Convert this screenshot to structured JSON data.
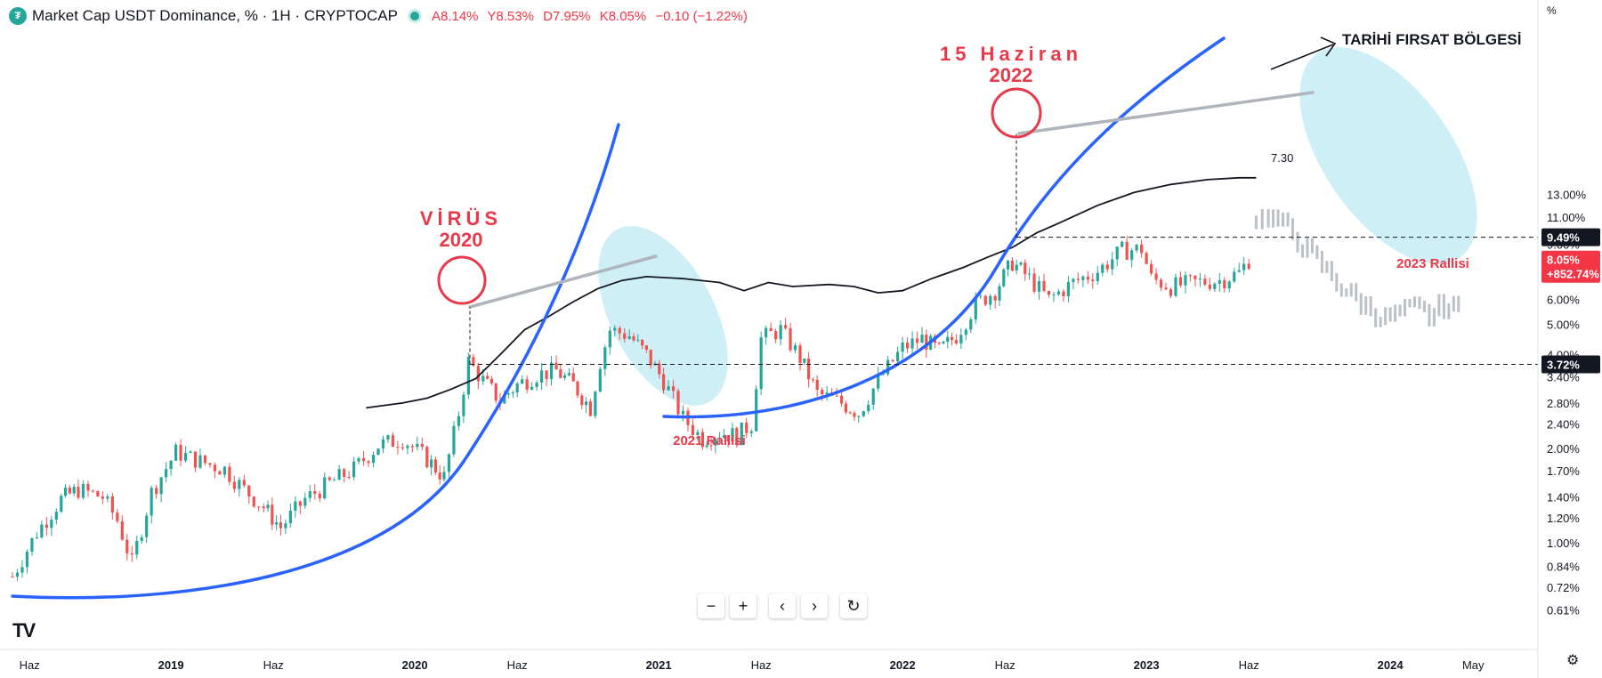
{
  "header": {
    "symbol": "Market Cap USDT Dominance, % · 1H · CRYPTOCAP",
    "open": "A8.14%",
    "high": "Y8.53%",
    "low": "D7.95%",
    "close": "K8.05%",
    "change": "−0.10 (−1.22%)"
  },
  "price_axis": {
    "unit": "%",
    "ticks": [
      {
        "label": "13.00%",
        "value": 13.0
      },
      {
        "label": "11.00%",
        "value": 11.0
      },
      {
        "label": "9.00%",
        "value": 9.0
      },
      {
        "label": "6.00%",
        "value": 6.0
      },
      {
        "label": "5.00%",
        "value": 5.0
      },
      {
        "label": "4.00%",
        "value": 4.0
      },
      {
        "label": "3.40%",
        "value": 3.4
      },
      {
        "label": "2.80%",
        "value": 2.8
      },
      {
        "label": "2.40%",
        "value": 2.4
      },
      {
        "label": "2.00%",
        "value": 2.0
      },
      {
        "label": "1.70%",
        "value": 1.7
      },
      {
        "label": "1.40%",
        "value": 1.4
      },
      {
        "label": "1.20%",
        "value": 1.2
      },
      {
        "label": "1.00%",
        "value": 1.0
      },
      {
        "label": "0.84%",
        "value": 0.84
      },
      {
        "label": "0.72%",
        "value": 0.72
      },
      {
        "label": "0.61%",
        "value": 0.61
      }
    ],
    "marker_949": {
      "label": "9.49%",
      "value": 9.49
    },
    "marker_372": {
      "label": "3.72%",
      "value": 3.72
    },
    "current_price": {
      "label": "8.05%",
      "change": "+852.74%",
      "value": 8.05
    }
  },
  "time_axis": {
    "ticks": [
      {
        "label": "Haz",
        "t": 2018.42
      },
      {
        "label": "2019",
        "t": 2019.0
      },
      {
        "label": "Haz",
        "t": 2019.42
      },
      {
        "label": "2020",
        "t": 2020.0
      },
      {
        "label": "Haz",
        "t": 2020.42
      },
      {
        "label": "2021",
        "t": 2021.0
      },
      {
        "label": "Haz",
        "t": 2021.42
      },
      {
        "label": "2022",
        "t": 2022.0
      },
      {
        "label": "Haz",
        "t": 2022.42
      },
      {
        "label": "2023",
        "t": 2023.0
      },
      {
        "label": "Haz",
        "t": 2023.42
      },
      {
        "label": "2024",
        "t": 2024.0
      },
      {
        "label": "May",
        "t": 2024.34
      }
    ]
  },
  "annotations": {
    "virus_line1": "VİRÜS",
    "virus_line2": "2020",
    "haziran_line1": "15 Haziran",
    "haziran_line2": "2022",
    "rally_2021": "2021 Rallisi",
    "rally_2023": "2023 Rallisi",
    "opportunity": "TARİHİ FIRSAT BÖLGESİ",
    "value_730": "7.30"
  },
  "controls": {
    "zoom_out": "−",
    "zoom_in": "+",
    "scroll_left": "‹",
    "scroll_right": "›",
    "reset": "↻"
  },
  "colors": {
    "up": "#26a69a",
    "down": "#ef5350",
    "curve": "#2962ff",
    "annotation_red": "#e8394a",
    "projection": "#b0b5bd",
    "zone_fill": "#bfeaf3"
  },
  "chart_data": {
    "type": "candlestick",
    "title": "Market Cap USDT Dominance, % · 1H · CRYPTOCAP",
    "y_scale": "log",
    "ylim": [
      0.58,
      14.5
    ],
    "xlim": [
      2018.35,
      2024.62
    ],
    "close_series": [
      {
        "t": 2018.35,
        "v": 0.78
      },
      {
        "t": 2018.45,
        "v": 1.08
      },
      {
        "t": 2018.55,
        "v": 1.38
      },
      {
        "t": 2018.62,
        "v": 1.48
      },
      {
        "t": 2018.72,
        "v": 1.4
      },
      {
        "t": 2018.78,
        "v": 1.18
      },
      {
        "t": 2018.84,
        "v": 0.86
      },
      {
        "t": 2018.92,
        "v": 1.45
      },
      {
        "t": 2019.02,
        "v": 1.95
      },
      {
        "t": 2019.12,
        "v": 1.82
      },
      {
        "t": 2019.22,
        "v": 1.72
      },
      {
        "t": 2019.3,
        "v": 1.48
      },
      {
        "t": 2019.38,
        "v": 1.3
      },
      {
        "t": 2019.45,
        "v": 1.12
      },
      {
        "t": 2019.55,
        "v": 1.38
      },
      {
        "t": 2019.65,
        "v": 1.55
      },
      {
        "t": 2019.75,
        "v": 1.72
      },
      {
        "t": 2019.85,
        "v": 2.05
      },
      {
        "t": 2019.95,
        "v": 2.15
      },
      {
        "t": 2020.05,
        "v": 1.85
      },
      {
        "t": 2020.12,
        "v": 1.62
      },
      {
        "t": 2020.18,
        "v": 2.6
      },
      {
        "t": 2020.22,
        "v": 3.8
      },
      {
        "t": 2020.28,
        "v": 3.3
      },
      {
        "t": 2020.35,
        "v": 2.85
      },
      {
        "t": 2020.42,
        "v": 3.2
      },
      {
        "t": 2020.5,
        "v": 3.45
      },
      {
        "t": 2020.58,
        "v": 3.55
      },
      {
        "t": 2020.65,
        "v": 3.2
      },
      {
        "t": 2020.72,
        "v": 2.7
      },
      {
        "t": 2020.76,
        "v": 3.8
      },
      {
        "t": 2020.8,
        "v": 4.8
      },
      {
        "t": 2020.88,
        "v": 4.6
      },
      {
        "t": 2020.95,
        "v": 4.0
      },
      {
        "t": 2021.02,
        "v": 3.3
      },
      {
        "t": 2021.1,
        "v": 2.5
      },
      {
        "t": 2021.18,
        "v": 2.15
      },
      {
        "t": 2021.25,
        "v": 2.25
      },
      {
        "t": 2021.32,
        "v": 2.2
      },
      {
        "t": 2021.38,
        "v": 2.4
      },
      {
        "t": 2021.42,
        "v": 4.5
      },
      {
        "t": 2021.5,
        "v": 4.8
      },
      {
        "t": 2021.58,
        "v": 3.9
      },
      {
        "t": 2021.65,
        "v": 3.0
      },
      {
        "t": 2021.75,
        "v": 2.8
      },
      {
        "t": 2021.82,
        "v": 2.6
      },
      {
        "t": 2021.9,
        "v": 3.3
      },
      {
        "t": 2022.0,
        "v": 4.2
      },
      {
        "t": 2022.08,
        "v": 4.5
      },
      {
        "t": 2022.15,
        "v": 4.1
      },
      {
        "t": 2022.22,
        "v": 4.6
      },
      {
        "t": 2022.3,
        "v": 5.8
      },
      {
        "t": 2022.38,
        "v": 6.4
      },
      {
        "t": 2022.45,
        "v": 7.9
      },
      {
        "t": 2022.52,
        "v": 7.0
      },
      {
        "t": 2022.6,
        "v": 6.0
      },
      {
        "t": 2022.7,
        "v": 6.8
      },
      {
        "t": 2022.8,
        "v": 7.4
      },
      {
        "t": 2022.9,
        "v": 8.6
      },
      {
        "t": 2022.98,
        "v": 8.7
      },
      {
        "t": 2023.02,
        "v": 7.0
      },
      {
        "t": 2023.1,
        "v": 6.6
      },
      {
        "t": 2023.2,
        "v": 6.8
      },
      {
        "t": 2023.3,
        "v": 6.9
      },
      {
        "t": 2023.38,
        "v": 7.3
      },
      {
        "t": 2023.42,
        "v": 8.05
      }
    ],
    "moving_average": [
      {
        "t": 2019.8,
        "v": 2.7
      },
      {
        "t": 2019.95,
        "v": 2.8
      },
      {
        "t": 2020.05,
        "v": 2.9
      },
      {
        "t": 2020.15,
        "v": 3.1
      },
      {
        "t": 2020.25,
        "v": 3.35
      },
      {
        "t": 2020.35,
        "v": 4.0
      },
      {
        "t": 2020.45,
        "v": 4.8
      },
      {
        "t": 2020.55,
        "v": 5.3
      },
      {
        "t": 2020.65,
        "v": 5.9
      },
      {
        "t": 2020.75,
        "v": 6.5
      },
      {
        "t": 2020.85,
        "v": 6.9
      },
      {
        "t": 2020.95,
        "v": 7.1
      },
      {
        "t": 2021.1,
        "v": 7.0
      },
      {
        "t": 2021.25,
        "v": 6.8
      },
      {
        "t": 2021.35,
        "v": 6.4
      },
      {
        "t": 2021.45,
        "v": 6.8
      },
      {
        "t": 2021.55,
        "v": 6.6
      },
      {
        "t": 2021.7,
        "v": 6.7
      },
      {
        "t": 2021.8,
        "v": 6.6
      },
      {
        "t": 2021.9,
        "v": 6.3
      },
      {
        "t": 2022.0,
        "v": 6.4
      },
      {
        "t": 2022.12,
        "v": 7.0
      },
      {
        "t": 2022.25,
        "v": 7.6
      },
      {
        "t": 2022.35,
        "v": 8.2
      },
      {
        "t": 2022.45,
        "v": 8.8
      },
      {
        "t": 2022.55,
        "v": 9.8
      },
      {
        "t": 2022.65,
        "v": 10.6
      },
      {
        "t": 2022.8,
        "v": 12.0
      },
      {
        "t": 2022.95,
        "v": 13.2
      },
      {
        "t": 2023.1,
        "v": 14.0
      },
      {
        "t": 2023.25,
        "v": 14.5
      },
      {
        "t": 2023.38,
        "v": 14.7
      },
      {
        "t": 2023.45,
        "v": 14.7
      }
    ],
    "projection_series": [
      {
        "t": 2023.45,
        "v": 10.8
      },
      {
        "t": 2023.5,
        "v": 11.2
      },
      {
        "t": 2023.56,
        "v": 10.3
      },
      {
        "t": 2023.62,
        "v": 9.4
      },
      {
        "t": 2023.68,
        "v": 8.2
      },
      {
        "t": 2023.74,
        "v": 7.4
      },
      {
        "t": 2023.8,
        "v": 6.6
      },
      {
        "t": 2023.86,
        "v": 6.0
      },
      {
        "t": 2023.92,
        "v": 5.6
      },
      {
        "t": 2023.98,
        "v": 5.2
      },
      {
        "t": 2024.04,
        "v": 5.4
      },
      {
        "t": 2024.1,
        "v": 5.6
      },
      {
        "t": 2024.16,
        "v": 5.3
      },
      {
        "t": 2024.22,
        "v": 5.8
      },
      {
        "t": 2024.28,
        "v": 5.5
      }
    ]
  }
}
